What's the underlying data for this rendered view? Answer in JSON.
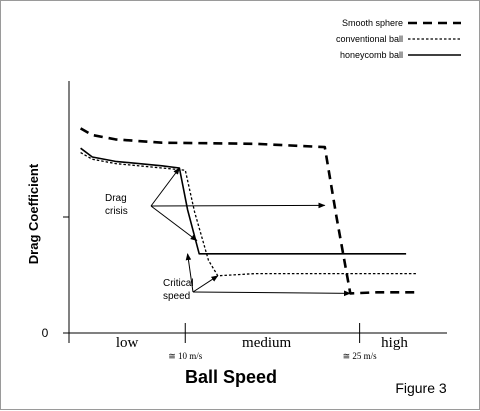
{
  "chart_data": {
    "type": "line",
    "ylabel": "Drag Coefficient",
    "xlabel": "Ball Speed",
    "figure_label": "Figure 3",
    "y_tick_labels": [
      "0"
    ],
    "x_regions": [
      "low",
      "medium",
      "high"
    ],
    "x_markers": [
      "≅ 10 m/s",
      "≅ 25 m/s"
    ],
    "xlim": [
      0,
      32
    ],
    "ylim": [
      0,
      1
    ],
    "legend_position": "top-right",
    "series": [
      {
        "name": "Smooth sphere",
        "style": "dashed-thick",
        "color": "#000000",
        "x": [
          1.0,
          2.0,
          4.0,
          8.0,
          16.0,
          22.0,
          23.0,
          24.2,
          26.5,
          30.0
        ],
        "y": [
          0.93,
          0.9,
          0.88,
          0.865,
          0.86,
          0.845,
          0.53,
          0.18,
          0.185,
          0.185
        ]
      },
      {
        "name": "conventional ball",
        "style": "dotted",
        "color": "#000000",
        "x": [
          1.0,
          2.0,
          4.0,
          8.0,
          10.0,
          10.8,
          12.0,
          12.8,
          16.0,
          22.0,
          30.0
        ],
        "y": [
          0.82,
          0.79,
          0.77,
          0.75,
          0.74,
          0.55,
          0.33,
          0.26,
          0.27,
          0.27,
          0.27
        ]
      },
      {
        "name": "honeycomb ball",
        "style": "solid",
        "color": "#000000",
        "x": [
          1.0,
          2.0,
          4.0,
          8.0,
          9.5,
          10.2,
          11.2,
          16.0,
          22.0,
          29.0
        ],
        "y": [
          0.84,
          0.8,
          0.78,
          0.76,
          0.75,
          0.56,
          0.36,
          0.36,
          0.36,
          0.36
        ]
      }
    ],
    "annotations": [
      {
        "text": [
          "Drag",
          "crisis"
        ],
        "points_to": [
          [
            9.5,
            0.75
          ],
          [
            22.0,
            0.58
          ],
          [
            11.0,
            0.42
          ]
        ]
      },
      {
        "text": [
          "Critical",
          "speed"
        ],
        "points_to": [
          [
            10.2,
            0.36
          ],
          [
            12.8,
            0.26
          ],
          [
            24.2,
            0.18
          ]
        ]
      }
    ]
  }
}
